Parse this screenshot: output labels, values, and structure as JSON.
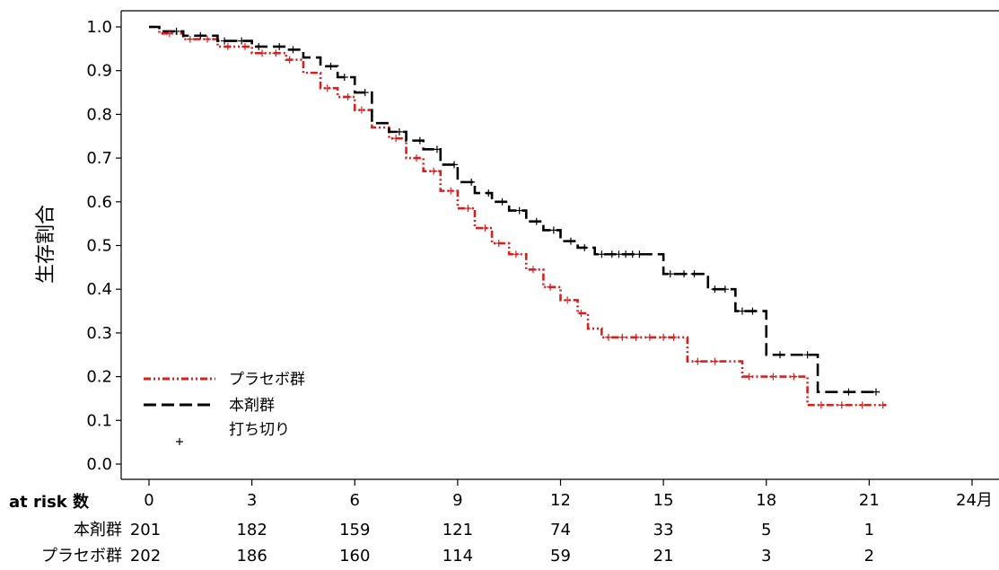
{
  "chart_data": {
    "type": "line",
    "title": "",
    "xlabel": "",
    "ylabel": "生存割合",
    "xlim": [
      0,
      24
    ],
    "ylim": [
      0.0,
      1.0
    ],
    "x_unit_label": "24月",
    "x_ticks": [
      0,
      3,
      6,
      9,
      12,
      15,
      18,
      21,
      24
    ],
    "x_tick_labels": [
      "0",
      "3",
      "6",
      "9",
      "12",
      "15",
      "18",
      "21",
      "24月"
    ],
    "y_ticks": [
      0.0,
      0.1,
      0.2,
      0.3,
      0.4,
      0.5,
      0.6,
      0.7,
      0.8,
      0.9,
      1.0
    ],
    "y_tick_labels": [
      "0.0",
      "0.1",
      "0.2",
      "0.3",
      "0.4",
      "0.5",
      "0.6",
      "0.7",
      "0.8",
      "0.9",
      "1.0"
    ],
    "grid": false,
    "legend_position": "bottom-left",
    "censor_label": "打ち切り",
    "series": [
      {
        "name": "プラセボ群",
        "color": "#d62020",
        "dash": "dash-dot-dot",
        "points": [
          [
            0,
            1.0
          ],
          [
            0.3,
            0.985
          ],
          [
            1,
            0.972
          ],
          [
            2,
            0.955
          ],
          [
            3,
            0.94
          ],
          [
            4,
            0.925
          ],
          [
            4.5,
            0.895
          ],
          [
            5,
            0.86
          ],
          [
            5.5,
            0.84
          ],
          [
            6,
            0.81
          ],
          [
            6.5,
            0.77
          ],
          [
            7,
            0.745
          ],
          [
            7.5,
            0.7
          ],
          [
            8,
            0.67
          ],
          [
            8.5,
            0.625
          ],
          [
            9,
            0.585
          ],
          [
            9.5,
            0.54
          ],
          [
            10,
            0.505
          ],
          [
            10.5,
            0.48
          ],
          [
            11,
            0.445
          ],
          [
            11.5,
            0.405
          ],
          [
            12,
            0.375
          ],
          [
            12.5,
            0.345
          ],
          [
            12.8,
            0.31
          ],
          [
            13.2,
            0.29
          ],
          [
            15.5,
            0.29
          ],
          [
            15.7,
            0.235
          ],
          [
            17,
            0.235
          ],
          [
            17.3,
            0.2
          ],
          [
            19.2,
            0.2
          ],
          [
            19.2,
            0.135
          ],
          [
            21.5,
            0.135
          ]
        ],
        "censor_times": [
          0.6,
          1.2,
          1.7,
          2.3,
          2.8,
          3.3,
          3.7,
          4.1,
          5.2,
          5.8,
          6.2,
          7.2,
          7.8,
          8.3,
          8.8,
          9.3,
          9.8,
          10.2,
          10.7,
          11.2,
          11.7,
          12.2,
          12.6,
          13.4,
          13.8,
          14.2,
          14.6,
          15.0,
          15.3,
          16.0,
          16.5,
          17.5,
          18.2,
          18.8,
          19.6,
          20.2,
          20.8,
          21.4
        ]
      },
      {
        "name": "本剤群",
        "color": "#000000",
        "dash": "dashed",
        "points": [
          [
            0,
            1.0
          ],
          [
            0.3,
            0.99
          ],
          [
            1,
            0.98
          ],
          [
            2,
            0.968
          ],
          [
            3,
            0.955
          ],
          [
            4,
            0.948
          ],
          [
            4.5,
            0.93
          ],
          [
            5,
            0.91
          ],
          [
            5.5,
            0.885
          ],
          [
            6,
            0.85
          ],
          [
            6.5,
            0.78
          ],
          [
            7,
            0.76
          ],
          [
            7.5,
            0.74
          ],
          [
            8,
            0.72
          ],
          [
            8.5,
            0.685
          ],
          [
            9,
            0.645
          ],
          [
            9.5,
            0.62
          ],
          [
            10,
            0.6
          ],
          [
            10.5,
            0.58
          ],
          [
            11,
            0.555
          ],
          [
            11.5,
            0.535
          ],
          [
            12,
            0.51
          ],
          [
            12.5,
            0.495
          ],
          [
            13,
            0.48
          ],
          [
            14.5,
            0.48
          ],
          [
            15,
            0.435
          ],
          [
            16,
            0.435
          ],
          [
            16.3,
            0.4
          ],
          [
            17,
            0.4
          ],
          [
            17.1,
            0.35
          ],
          [
            18.0,
            0.35
          ],
          [
            18.0,
            0.25
          ],
          [
            19.5,
            0.25
          ],
          [
            19.5,
            0.165
          ],
          [
            21.3,
            0.165
          ]
        ],
        "censor_times": [
          0.8,
          1.5,
          2.2,
          2.7,
          3.2,
          3.8,
          4.2,
          5.3,
          5.7,
          6.3,
          7.3,
          7.9,
          8.4,
          8.9,
          9.4,
          9.9,
          10.3,
          10.8,
          11.3,
          11.8,
          12.3,
          12.7,
          13.2,
          13.5,
          13.7,
          13.9,
          14.1,
          14.3,
          15.2,
          15.6,
          15.9,
          16.5,
          16.8,
          17.3,
          17.6,
          18.4,
          19.2,
          20.4,
          21.2
        ]
      }
    ]
  },
  "legend": {
    "items": [
      {
        "label": "プラセボ群"
      },
      {
        "label": "本剤群"
      },
      {
        "label": "打ち切り"
      }
    ]
  },
  "risk_table": {
    "title": "at risk 数",
    "times": [
      0,
      3,
      6,
      9,
      12,
      15,
      18,
      21
    ],
    "rows": [
      {
        "label": "本剤群",
        "values": [
          "201",
          "182",
          "159",
          "121",
          "74",
          "33",
          "5",
          "1"
        ]
      },
      {
        "label": "プラセボ群",
        "values": [
          "202",
          "186",
          "160",
          "114",
          "59",
          "21",
          "3",
          "2"
        ]
      }
    ]
  }
}
